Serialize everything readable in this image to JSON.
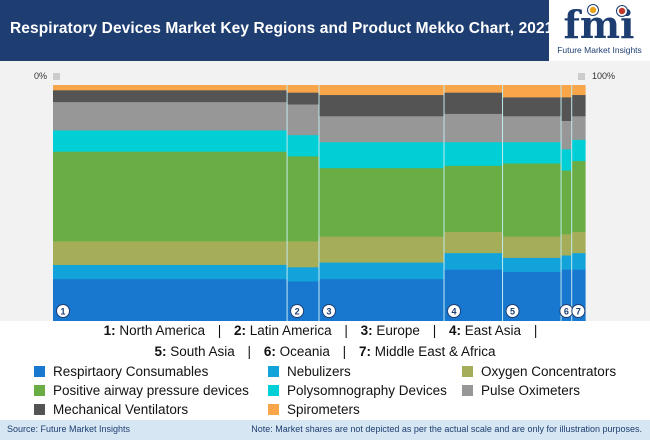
{
  "header": {
    "title": "Respiratory Devices Market Key Regions and Product Mekko Chart, 2021",
    "logo_text": "fmi",
    "logo_tagline": "Future Market Insights"
  },
  "chart_data": {
    "type": "mekko",
    "y_axis": {
      "min_label": "0%",
      "max_label": "100%"
    },
    "regions": [
      {
        "number": "1",
        "name": "North America",
        "width_pct": 44.0
      },
      {
        "number": "2",
        "name": "Latin America",
        "width_pct": 6.0
      },
      {
        "number": "3",
        "name": "Europe",
        "width_pct": 23.5
      },
      {
        "number": "4",
        "name": "East Asia",
        "width_pct": 11.0
      },
      {
        "number": "5",
        "name": "South Asia",
        "width_pct": 11.0
      },
      {
        "number": "6",
        "name": "Oceania",
        "width_pct": 2.0
      },
      {
        "number": "7",
        "name": "Middle East & Africa",
        "width_pct": 2.5
      }
    ],
    "series": [
      {
        "name": "Respirtaory Consumables",
        "color": "#1878cf",
        "values": [
          18,
          17,
          18,
          22,
          21,
          22,
          22
        ]
      },
      {
        "name": "Nebulizers",
        "color": "#12a3db",
        "values": [
          6,
          6,
          7,
          7,
          6,
          6,
          7
        ]
      },
      {
        "name": "Oxygen Concentrators",
        "color": "#a6ad58",
        "values": [
          10,
          11,
          11,
          9,
          9,
          9,
          9
        ]
      },
      {
        "name": "Positive airway pressure devices",
        "color": "#6aad45",
        "values": [
          38,
          36,
          29,
          28,
          31,
          27,
          30
        ]
      },
      {
        "name": "Polysomnography Devices",
        "color": "#00d0d6",
        "values": [
          9,
          9,
          11,
          10,
          9,
          9,
          9
        ]
      },
      {
        "name": "Pulse Oximeters",
        "color": "#979797",
        "values": [
          12,
          13,
          11,
          12,
          11,
          12,
          10
        ]
      },
      {
        "name": "Mechanical Ventilators",
        "color": "#545454",
        "values": [
          5,
          5,
          9,
          9,
          8,
          10,
          9
        ]
      },
      {
        "name": "Spirometers",
        "color": "#f9a64a",
        "values": [
          2,
          3,
          4,
          3,
          5,
          5,
          4
        ]
      }
    ]
  },
  "footer": {
    "source": "Source: Future Market Insights",
    "note": "Note: Market shares are not depicted as per the actual scale and are only for illustration purposes."
  }
}
